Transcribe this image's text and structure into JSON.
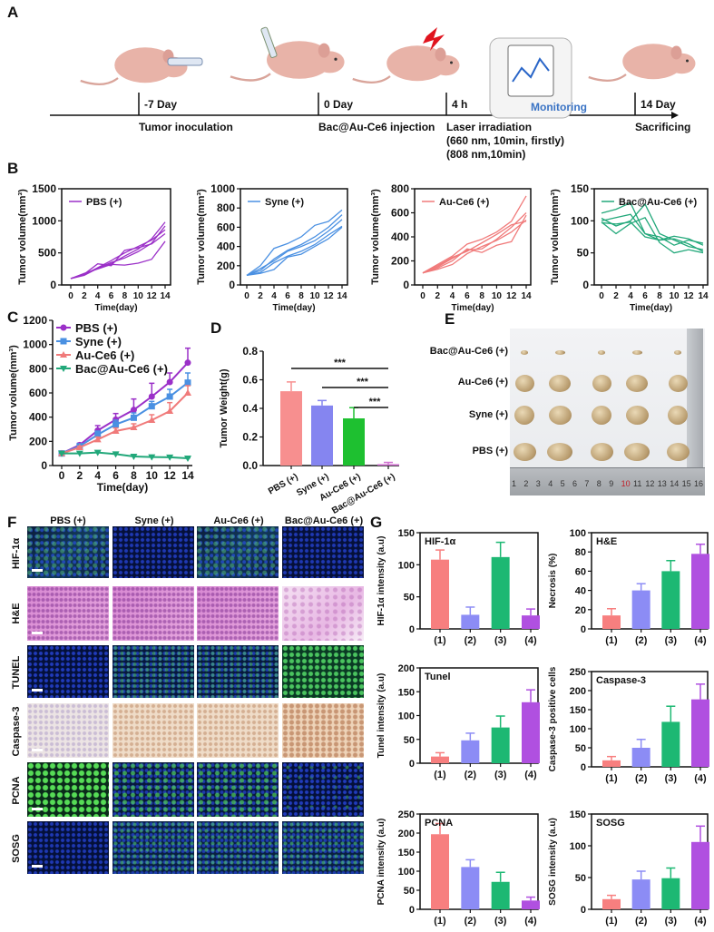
{
  "panel_labels": {
    "a": "A",
    "b": "B",
    "c": "C",
    "d": "D",
    "e": "E",
    "f": "F",
    "g": "G"
  },
  "panel_a": {
    "steps": [
      {
        "time": "-7 Day",
        "label": "Tumor inoculation"
      },
      {
        "time": "0 Day",
        "label": "Bac@Au-Ce6 injection"
      },
      {
        "time": "4 h",
        "label": "Laser irradiation",
        "sub1": "(660 nm, 10min, firstly)",
        "sub2": "(808 nm,10min)"
      },
      {
        "time": "14 Day",
        "label": "Sacrificing"
      }
    ],
    "monitoring_label": "Monitoring"
  },
  "chart_data": [
    {
      "id": "B1",
      "type": "line",
      "xlabel": "Time(day)",
      "ylabel": "Tumor volume(mm³)",
      "ylim": [
        0,
        1500
      ],
      "yticks": [
        0,
        500,
        1000,
        1500
      ],
      "x": [
        0,
        2,
        4,
        6,
        8,
        10,
        12,
        14
      ],
      "series": [
        {
          "name": "PBS (+)",
          "color": "#9b30c8",
          "lines": [
            [
              100,
              170,
              260,
              330,
              450,
              560,
              720,
              980
            ],
            [
              100,
              150,
              260,
              350,
              420,
              520,
              650,
              920
            ],
            [
              100,
              180,
              250,
              320,
              310,
              340,
              400,
              680
            ],
            [
              100,
              160,
              270,
              380,
              500,
              600,
              700,
              860
            ],
            [
              100,
              170,
              330,
              300,
              540,
              580,
              640,
              800
            ]
          ]
        }
      ]
    },
    {
      "id": "B2",
      "type": "line",
      "xlabel": "Time(day)",
      "ylabel": "Tumor volume(mm³)",
      "ylim": [
        0,
        1000
      ],
      "yticks": [
        0,
        200,
        400,
        600,
        800,
        1000
      ],
      "x": [
        0,
        2,
        4,
        6,
        8,
        10,
        12,
        14
      ],
      "series": [
        {
          "name": "Syne (+)",
          "color": "#4a90e2",
          "lines": [
            [
              100,
              200,
              380,
              430,
              500,
              620,
              660,
              780
            ],
            [
              100,
              150,
              270,
              360,
              420,
              500,
              600,
              730
            ],
            [
              100,
              170,
              250,
              350,
              400,
              460,
              560,
              680
            ],
            [
              100,
              120,
              160,
              290,
              320,
              400,
              480,
              600
            ],
            [
              100,
              130,
              230,
              300,
              350,
              420,
              520,
              610
            ]
          ]
        }
      ]
    },
    {
      "id": "B3",
      "type": "line",
      "xlabel": "Time(day)",
      "ylabel": "Tumor volume(mm³)",
      "ylim": [
        0,
        800
      ],
      "yticks": [
        0,
        200,
        400,
        600,
        800
      ],
      "x": [
        0,
        2,
        4,
        6,
        8,
        10,
        12,
        14
      ],
      "series": [
        {
          "name": "Au-Ce6 (+)",
          "color": "#f07a7a",
          "lines": [
            [
              100,
              170,
              240,
              340,
              380,
              440,
              530,
              740
            ],
            [
              100,
              150,
              220,
              290,
              300,
              380,
              480,
              600
            ],
            [
              100,
              140,
              200,
              300,
              270,
              330,
              360,
              580
            ],
            [
              100,
              130,
              170,
              260,
              320,
              370,
              440,
              540
            ],
            [
              100,
              160,
              230,
              280,
              350,
              420,
              500,
              530
            ]
          ]
        }
      ]
    },
    {
      "id": "B4",
      "type": "line",
      "xlabel": "Time(day)",
      "ylabel": "Tumor volume(mm³)",
      "ylim": [
        0,
        150
      ],
      "yticks": [
        0,
        50,
        100,
        150
      ],
      "x": [
        0,
        2,
        4,
        6,
        8,
        10,
        12,
        14
      ],
      "series": [
        {
          "name": "Bac@Au-Ce6 (+)",
          "color": "#22a87a",
          "lines": [
            [
              112,
              118,
              128,
              80,
              70,
              76,
              72,
              62
            ],
            [
              104,
              92,
              100,
              126,
              80,
              70,
              60,
              55
            ],
            [
              98,
              80,
              96,
              105,
              66,
              50,
              55,
              50
            ],
            [
              100,
              105,
              110,
              80,
              75,
              62,
              70,
              65
            ],
            [
              97,
              95,
              98,
              75,
              70,
              72,
              64,
              52
            ]
          ]
        }
      ]
    },
    {
      "id": "C",
      "type": "line",
      "xlabel": "Time(day)",
      "ylabel": "Tumor volume(mm³)",
      "ylim": [
        0,
        1200
      ],
      "yticks": [
        0,
        200,
        400,
        600,
        800,
        1000,
        1200
      ],
      "x": [
        0,
        2,
        4,
        6,
        8,
        10,
        12,
        14
      ],
      "series": [
        {
          "name": "PBS (+)",
          "color": "#9b30c8",
          "marker": "circle",
          "values": [
            100,
            170,
            290,
            380,
            460,
            570,
            690,
            850
          ],
          "errors": [
            8,
            15,
            40,
            50,
            90,
            110,
            75,
            120
          ]
        },
        {
          "name": "Syne (+)",
          "color": "#4a90e2",
          "marker": "square",
          "values": [
            100,
            160,
            255,
            340,
            395,
            490,
            570,
            685
          ],
          "errors": [
            8,
            12,
            30,
            35,
            40,
            40,
            60,
            80
          ]
        },
        {
          "name": "Au-Ce6 (+)",
          "color": "#f07a7a",
          "marker": "triangle",
          "values": [
            100,
            150,
            215,
            285,
            315,
            375,
            450,
            600
          ],
          "errors": [
            8,
            10,
            20,
            25,
            30,
            45,
            70,
            60
          ]
        },
        {
          "name": "Bac@Au-Ce6 (+)",
          "color": "#22a87a",
          "marker": "triangle-down",
          "values": [
            100,
            100,
            108,
            95,
            75,
            70,
            68,
            60
          ],
          "errors": [
            5,
            5,
            5,
            5,
            5,
            5,
            4,
            4
          ]
        }
      ]
    },
    {
      "id": "D",
      "type": "bar",
      "ylabel": "Tumor Weight(g)",
      "ylim": [
        0,
        0.8
      ],
      "yticks": [
        "0.0",
        "0.2",
        "0.4",
        "0.6",
        "0.8"
      ],
      "categories": [
        "PBS (+)",
        "Syne (+)",
        "Au-Ce6 (+)",
        "Bac@Au-Ce6 (+)"
      ],
      "values": [
        0.52,
        0.42,
        0.33,
        0.01
      ],
      "errors": [
        0.065,
        0.035,
        0.075,
        0.012
      ],
      "colors": [
        "#f78f8f",
        "#8585f0",
        "#1ec030",
        "#d070d0"
      ],
      "significance": [
        {
          "from": 0,
          "to": 3,
          "label": "***"
        },
        {
          "from": 1,
          "to": 3,
          "label": "***"
        },
        {
          "from": 2,
          "to": 3,
          "label": "***"
        }
      ]
    },
    {
      "id": "G1",
      "type": "bar",
      "title": "HIF-1α",
      "ylabel": "HIF-1α intensity (a.u)",
      "ylim": [
        0,
        150
      ],
      "yticks": [
        0,
        50,
        100,
        150
      ],
      "categories": [
        "(1)",
        "(2)",
        "(3)",
        "(4)"
      ],
      "values": [
        108,
        22,
        112,
        21
      ],
      "errors": [
        15,
        12,
        23,
        10
      ],
      "colors": [
        "#f77f7f",
        "#8c8cf5",
        "#1db873",
        "#b050e0"
      ]
    },
    {
      "id": "G2",
      "type": "bar",
      "title": "H&E",
      "ylabel": "Necrosis (%)",
      "ylim": [
        0,
        100
      ],
      "yticks": [
        0,
        20,
        40,
        60,
        80,
        100
      ],
      "categories": [
        "(1)",
        "(2)",
        "(3)",
        "(4)"
      ],
      "values": [
        14,
        40,
        60,
        78
      ],
      "errors": [
        7,
        7,
        11,
        10
      ],
      "colors": [
        "#f77f7f",
        "#8c8cf5",
        "#1db873",
        "#b050e0"
      ]
    },
    {
      "id": "G3",
      "type": "bar",
      "title": "Tunel",
      "ylabel": "Tunel intensity (a.u)",
      "ylim": [
        0,
        200
      ],
      "yticks": [
        0,
        50,
        100,
        150,
        200
      ],
      "categories": [
        "(1)",
        "(2)",
        "(3)",
        "(4)"
      ],
      "values": [
        14,
        48,
        75,
        128
      ],
      "errors": [
        8,
        15,
        24,
        26
      ],
      "colors": [
        "#f77f7f",
        "#8c8cf5",
        "#1db873",
        "#b050e0"
      ]
    },
    {
      "id": "G4",
      "type": "bar",
      "title": "Caspase-3",
      "ylabel": "Caspase-3 positive cells",
      "ylim": [
        0,
        250
      ],
      "yticks": [
        0,
        50,
        100,
        150,
        200,
        250
      ],
      "categories": [
        "(1)",
        "(2)",
        "(3)",
        "(4)"
      ],
      "values": [
        17,
        50,
        118,
        177
      ],
      "errors": [
        10,
        22,
        41,
        40
      ],
      "colors": [
        "#f77f7f",
        "#8c8cf5",
        "#1db873",
        "#b050e0"
      ]
    },
    {
      "id": "G5",
      "type": "bar",
      "title": "PCNA",
      "ylabel": "PCNA intensity (a.u)",
      "ylim": [
        0,
        250
      ],
      "yticks": [
        0,
        50,
        100,
        150,
        200,
        250
      ],
      "categories": [
        "(1)",
        "(2)",
        "(3)",
        "(4)"
      ],
      "values": [
        197,
        111,
        72,
        23
      ],
      "errors": [
        28,
        19,
        25,
        9
      ],
      "colors": [
        "#f77f7f",
        "#8c8cf5",
        "#1db873",
        "#b050e0"
      ]
    },
    {
      "id": "G6",
      "type": "bar",
      "title": "SOSG",
      "ylabel": "SOSG intensity (a.u)",
      "ylim": [
        0,
        150
      ],
      "yticks": [
        0,
        50,
        100,
        150
      ],
      "categories": [
        "(1)",
        "(2)",
        "(3)",
        "(4)"
      ],
      "values": [
        16,
        47,
        49,
        106
      ],
      "errors": [
        6,
        13,
        16,
        25
      ],
      "colors": [
        "#f77f7f",
        "#8c8cf5",
        "#1db873",
        "#b050e0"
      ]
    }
  ],
  "panel_e": {
    "rows": [
      "Bac@Au-Ce6 (+)",
      "Au-Ce6 (+)",
      "Syne (+)",
      "PBS (+)"
    ],
    "ruler_numbers": [
      "1",
      "2",
      "3",
      "4",
      "5",
      "6",
      "7",
      "8",
      "9",
      "10",
      "11",
      "12",
      "13",
      "14",
      "15",
      "16"
    ]
  },
  "panel_f": {
    "columns": [
      "PBS (+)",
      "Syne (+)",
      "Au-Ce6 (+)",
      "Bac@Au-Ce6 (+)"
    ],
    "rows": [
      "HIF-1α",
      "H&E",
      "TUNEL",
      "Caspase-3",
      "PCNA",
      "SOSG"
    ]
  }
}
